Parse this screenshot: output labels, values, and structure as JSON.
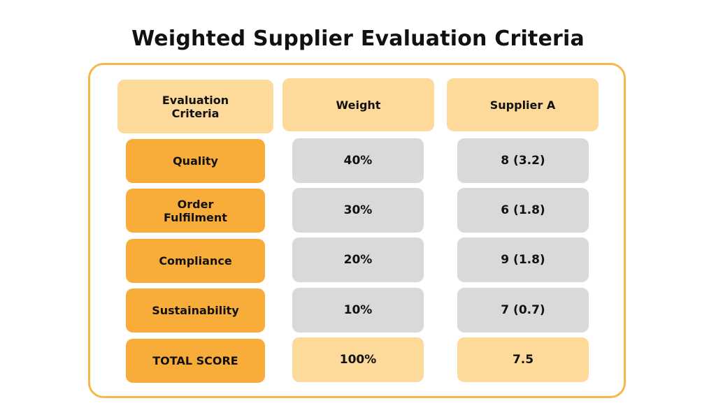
{
  "title": "Weighted Supplier Evaluation Criteria",
  "table": {
    "headers": [
      "Evaluation\nCriteria",
      "Weight",
      "Supplier A"
    ],
    "rows": [
      {
        "criterion": "Quality",
        "weight": "40%",
        "supplier_a": "8 (3.2)"
      },
      {
        "criterion": "Order\nFulfilment",
        "weight": "30%",
        "supplier_a": "6 (1.8)"
      },
      {
        "criterion": "Compliance",
        "weight": "20%",
        "supplier_a": "9 (1.8)"
      },
      {
        "criterion": "Sustainability",
        "weight": "10%",
        "supplier_a": "7 (0.7)"
      }
    ],
    "total": {
      "label": "TOTAL SCORE",
      "weight": "100%",
      "supplier_a": "7.5"
    }
  },
  "colors": {
    "frame_border": "#f7b84a",
    "header_fill": "#fdd99a",
    "criteria_fill": "#f8ad3a",
    "value_fill": "#d9d9d9",
    "total_fill": "#fdd99a"
  }
}
